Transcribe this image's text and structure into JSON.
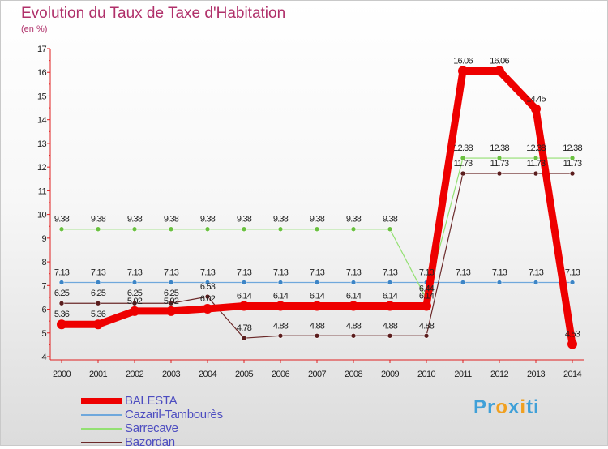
{
  "title": "Evolution du Taux de Taxe d'Habitation",
  "unit": "(en %)",
  "logo": {
    "parts": [
      "Pr",
      "o",
      "x",
      "i",
      "ti"
    ],
    "colors": [
      "#3fa0d8",
      "#f0a020",
      "#3fa0d8",
      "#f0a020",
      "#3fa0d8"
    ]
  },
  "chart_data": {
    "type": "line",
    "title": "Evolution du Taux de Taxe d'Habitation",
    "ylabel": "(en %)",
    "xlabel": "",
    "x": [
      "2000",
      "2001",
      "2002",
      "2003",
      "2004",
      "2005",
      "2006",
      "2007",
      "2008",
      "2009",
      "2010",
      "2011",
      "2012",
      "2013",
      "2014"
    ],
    "ylim": [
      4,
      17
    ],
    "yticks": [
      4,
      5,
      6,
      7,
      8,
      9,
      10,
      11,
      12,
      13,
      14,
      15,
      16,
      17
    ],
    "grid": false,
    "legend": "bottom-left",
    "series": [
      {
        "name": "BALESTA",
        "color": "#ee0000",
        "width": 9,
        "marker_fill": "#ee0000",
        "values": [
          5.36,
          5.36,
          5.92,
          5.92,
          6.02,
          6.14,
          6.14,
          6.14,
          6.14,
          6.14,
          6.14,
          16.06,
          16.06,
          14.45,
          4.53
        ],
        "labels": [
          "5.36",
          "5.36",
          "5.92",
          "5.92",
          "6.02",
          "6.14",
          "6.14",
          "6.14",
          "6.14",
          "6.14",
          "6.14",
          "16.06",
          "16.06",
          "14.45",
          "4.53"
        ]
      },
      {
        "name": "Cazaril-Tambourès",
        "color": "#6fa8dc",
        "width": 1.2,
        "marker_fill": "#3d85c6",
        "values": [
          7.13,
          7.13,
          7.13,
          7.13,
          7.13,
          7.13,
          7.13,
          7.13,
          7.13,
          7.13,
          7.13,
          7.13,
          7.13,
          7.13,
          7.13
        ],
        "labels": [
          "7.13",
          "7.13",
          "7.13",
          "7.13",
          "7.13",
          "7.13",
          "7.13",
          "7.13",
          "7.13",
          "7.13",
          "7.13",
          "7.13",
          "7.13",
          "7.13",
          "7.13"
        ]
      },
      {
        "name": "Sarrecave",
        "color": "#93e072",
        "width": 1.2,
        "marker_fill": "#6ac040",
        "values": [
          9.38,
          9.38,
          9.38,
          9.38,
          9.38,
          9.38,
          9.38,
          9.38,
          9.38,
          9.38,
          6.44,
          12.38,
          12.38,
          12.38,
          12.38
        ],
        "labels": [
          "9.38",
          "9.38",
          "9.38",
          "9.38",
          "9.38",
          "9.38",
          "9.38",
          "9.38",
          "9.38",
          "9.38",
          "6.44",
          "12.38",
          "12.38",
          "12.38",
          "12.38"
        ]
      },
      {
        "name": "Bazordan",
        "color": "#6b2a2a",
        "width": 1.2,
        "marker_fill": "#5a1d1d",
        "values": [
          6.25,
          6.25,
          6.25,
          6.25,
          6.53,
          4.78,
          4.88,
          4.88,
          4.88,
          4.88,
          4.88,
          11.73,
          11.73,
          11.73,
          11.73
        ],
        "labels": [
          "6.25",
          "6.25",
          "6.25",
          "6.25",
          "6.53",
          "4.78",
          "4.88",
          "4.88",
          "4.88",
          "4.88",
          "4.88",
          "11.73",
          "11.73",
          "11.73",
          "11.73"
        ]
      }
    ]
  }
}
